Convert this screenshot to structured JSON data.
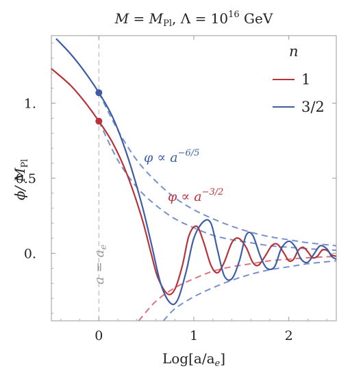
{
  "chart_data": {
    "type": "line",
    "title": "M = M_Pl, Λ = 10^16 GeV",
    "title_parts": {
      "lhs": "M",
      "eq": " = ",
      "rhs": "M",
      "rhs_sub": "Pl",
      "mid": ", Λ = 10",
      "exp": "16",
      "unit": " GeV"
    },
    "xlabel": "Log[a/a",
    "xlabel_sub": "e",
    "xlabel_close": "]",
    "ylabel": "ϕ/ M",
    "ylabel_sub": "Pl",
    "xlim": [
      -0.5,
      2.5
    ],
    "ylim": [
      -0.45,
      1.45
    ],
    "x_ticks": [
      0,
      1,
      2
    ],
    "x_tick_labels": [
      "0",
      "1",
      "2"
    ],
    "y_ticks": [
      0,
      0.5,
      1
    ],
    "y_tick_labels": [
      "0.",
      "0.5",
      "1."
    ],
    "legend": {
      "title": "n",
      "position": "top-right",
      "entries": [
        "1",
        "3/2"
      ]
    },
    "colors": {
      "n1": "#b8323a",
      "n32": "#3c5da6",
      "n1_dashed": "#d9737e",
      "n32_dashed": "#7590cc",
      "vline": "#bbbbbb"
    },
    "vertical_line": {
      "x": 0,
      "label": "a = a",
      "label_sub": "e"
    },
    "series": [
      {
        "name": "1",
        "style": "solid",
        "points": [
          [
            -0.5,
            1.23
          ],
          [
            -0.3,
            1.12
          ],
          [
            -0.15,
            1.01
          ],
          [
            0,
            0.88
          ],
          [
            0.15,
            0.73
          ],
          [
            0.3,
            0.52
          ],
          [
            0.45,
            0.24
          ],
          [
            0.55,
            0.0
          ],
          [
            0.62,
            -0.16
          ],
          [
            0.72,
            -0.27
          ],
          [
            0.8,
            -0.24
          ],
          [
            0.88,
            -0.08
          ],
          [
            0.95,
            0.12
          ],
          [
            1.03,
            0.18
          ],
          [
            1.1,
            0.08
          ],
          [
            1.18,
            -0.08
          ],
          [
            1.25,
            -0.13
          ],
          [
            1.32,
            -0.06
          ],
          [
            1.4,
            0.07
          ],
          [
            1.47,
            0.1
          ],
          [
            1.55,
            0.04
          ],
          [
            1.62,
            -0.06
          ],
          [
            1.68,
            -0.08
          ],
          [
            1.75,
            -0.02
          ],
          [
            1.82,
            0.05
          ],
          [
            1.88,
            0.06
          ],
          [
            1.95,
            0.0
          ],
          [
            2.0,
            -0.05
          ],
          [
            2.05,
            -0.04
          ],
          [
            2.1,
            0.02
          ],
          [
            2.15,
            0.04
          ],
          [
            2.2,
            0.01
          ],
          [
            2.25,
            -0.03
          ],
          [
            2.3,
            -0.02
          ],
          [
            2.35,
            0.02
          ],
          [
            2.4,
            0.02
          ],
          [
            2.45,
            -0.01
          ],
          [
            2.5,
            -0.02
          ]
        ]
      },
      {
        "name": "3/2",
        "style": "solid",
        "points": [
          [
            -0.45,
            1.43
          ],
          [
            -0.3,
            1.33
          ],
          [
            -0.15,
            1.21
          ],
          [
            0,
            1.07
          ],
          [
            0.15,
            0.9
          ],
          [
            0.3,
            0.65
          ],
          [
            0.45,
            0.33
          ],
          [
            0.55,
            0.07
          ],
          [
            0.65,
            -0.2
          ],
          [
            0.75,
            -0.33
          ],
          [
            0.83,
            -0.31
          ],
          [
            0.92,
            -0.12
          ],
          [
            1.0,
            0.1
          ],
          [
            1.1,
            0.21
          ],
          [
            1.18,
            0.2
          ],
          [
            1.25,
            0.02
          ],
          [
            1.32,
            -0.15
          ],
          [
            1.4,
            -0.17
          ],
          [
            1.48,
            -0.05
          ],
          [
            1.55,
            0.12
          ],
          [
            1.62,
            0.12
          ],
          [
            1.7,
            -0.02
          ],
          [
            1.77,
            -0.1
          ],
          [
            1.85,
            -0.09
          ],
          [
            1.92,
            0.03
          ],
          [
            2.0,
            0.08
          ],
          [
            2.07,
            0.04
          ],
          [
            2.13,
            -0.04
          ],
          [
            2.2,
            -0.06
          ],
          [
            2.27,
            0.0
          ],
          [
            2.33,
            0.05
          ],
          [
            2.4,
            0.03
          ],
          [
            2.45,
            -0.02
          ],
          [
            2.5,
            -0.04
          ]
        ]
      },
      {
        "name": "envelope n=1 (a^-3/2)",
        "style": "dashed",
        "points": [
          [
            0,
            0.88
          ],
          [
            0.2,
            0.62
          ],
          [
            0.4,
            0.44
          ],
          [
            0.6,
            0.32
          ],
          [
            0.8,
            0.23
          ],
          [
            1.0,
            0.17
          ],
          [
            1.2,
            0.12
          ],
          [
            1.4,
            0.09
          ],
          [
            1.6,
            0.07
          ],
          [
            1.8,
            0.05
          ],
          [
            2.0,
            0.04
          ],
          [
            2.2,
            0.03
          ],
          [
            2.5,
            0.02
          ]
        ]
      },
      {
        "name": "envelope n=1 lower",
        "style": "dashed",
        "points": [
          [
            0.42,
            -0.45
          ],
          [
            0.6,
            -0.32
          ],
          [
            0.8,
            -0.23
          ],
          [
            1.0,
            -0.17
          ],
          [
            1.2,
            -0.12
          ],
          [
            1.4,
            -0.09
          ],
          [
            1.6,
            -0.07
          ],
          [
            1.8,
            -0.05
          ],
          [
            2.0,
            -0.04
          ],
          [
            2.2,
            -0.03
          ],
          [
            2.5,
            -0.02
          ]
        ]
      },
      {
        "name": "envelope n=3/2 (a^-6/5)",
        "style": "dashed",
        "points": [
          [
            0,
            1.07
          ],
          [
            0.2,
            0.82
          ],
          [
            0.4,
            0.62
          ],
          [
            0.6,
            0.48
          ],
          [
            0.8,
            0.37
          ],
          [
            1.0,
            0.29
          ],
          [
            1.2,
            0.23
          ],
          [
            1.4,
            0.18
          ],
          [
            1.6,
            0.14
          ],
          [
            1.8,
            0.11
          ],
          [
            2.0,
            0.09
          ],
          [
            2.2,
            0.07
          ],
          [
            2.5,
            0.05
          ]
        ]
      },
      {
        "name": "envelope n=3/2 lower",
        "style": "dashed",
        "points": [
          [
            0.68,
            -0.45
          ],
          [
            0.8,
            -0.37
          ],
          [
            1.0,
            -0.29
          ],
          [
            1.2,
            -0.23
          ],
          [
            1.4,
            -0.18
          ],
          [
            1.6,
            -0.14
          ],
          [
            1.8,
            -0.11
          ],
          [
            2.0,
            -0.09
          ],
          [
            2.2,
            -0.07
          ],
          [
            2.5,
            -0.05
          ]
        ]
      }
    ],
    "markers": [
      {
        "series": "1",
        "x": 0,
        "y": 0.88
      },
      {
        "series": "3/2",
        "x": 0,
        "y": 1.07
      }
    ],
    "annotations": [
      {
        "text": "φ ∝ a",
        "exp": "−6/5",
        "series": "3/2",
        "anchor_x": 0.45,
        "anchor_y": 0.52
      },
      {
        "text": "φ ∝ a",
        "exp": "−3/2",
        "series": "1",
        "anchor_x": 0.72,
        "anchor_y": 0.27
      }
    ]
  }
}
